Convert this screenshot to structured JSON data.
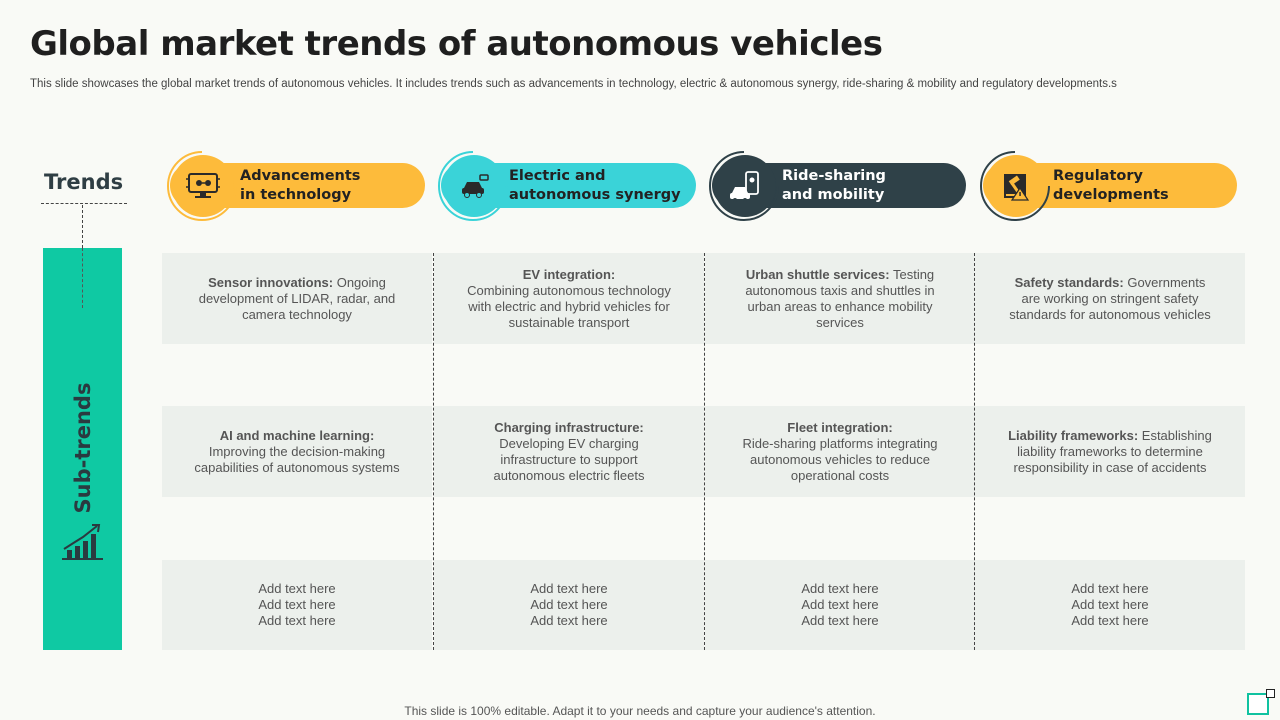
{
  "title": "Global market trends of autonomous vehicles",
  "subtitle": "This slide showcases the global market trends of autonomous vehicles. It includes trends such as advancements in technology, electric & autonomous synergy, ride-sharing & mobility and regulatory developments.s",
  "trends_label": "Trends",
  "subtrends_label": "Sub-trends",
  "colors": {
    "yellow": "#fdbb3b",
    "teal": "#3ad3d8",
    "dark": "#2f4148",
    "green": "#0fc9a3"
  },
  "trends": [
    {
      "label": "Advancements\nin technology",
      "icon": "circuit-monitor-icon"
    },
    {
      "label": " Electric and\nautonomous synergy",
      "icon": "electric-car-icon"
    },
    {
      "label": "Ride-sharing\nand mobility",
      "icon": "ride-sharing-phone-icon"
    },
    {
      "label": "Regulatory\ndevelopments",
      "icon": "gavel-icon"
    }
  ],
  "rows": [
    [
      {
        "bold": "Sensor innovations:",
        "text": " Ongoing development of LIDAR, radar, and camera technology"
      },
      {
        "bold": "EV integration:",
        "text": "Combining autonomous technology with electric and hybrid vehicles for sustainable transport"
      },
      {
        "bold": "Urban shuttle services:",
        "text": " Testing autonomous taxis and shuttles in urban areas to enhance mobility services"
      },
      {
        "bold": "Safety standards:",
        "text": " Governments are working on stringent safety standards for autonomous vehicles"
      }
    ],
    [
      {
        "bold": "AI and machine learning:",
        "text": "Improving the decision-making capabilities of autonomous systems"
      },
      {
        "bold": "Charging infrastructure:",
        "text": " Developing EV charging infrastructure to support autonomous electric fleets"
      },
      {
        "bold": "Fleet integration:",
        "text": "Ride-sharing platforms integrating autonomous vehicles to reduce operational costs"
      },
      {
        "bold": "Liability frameworks:",
        "text": " Establishing liability frameworks to determine responsibility in case of accidents"
      }
    ],
    [
      {
        "bold": "",
        "text": "Add text here\nAdd text here\nAdd text here"
      },
      {
        "bold": "",
        "text": "Add text here\nAdd text here\nAdd text here"
      },
      {
        "bold": "",
        "text": "Add text here\nAdd text here\nAdd text here"
      },
      {
        "bold": "",
        "text": "Add text here\nAdd text here\nAdd text here"
      }
    ]
  ],
  "footer": "This slide is 100% editable. Adapt it to your needs and capture your audience's attention."
}
